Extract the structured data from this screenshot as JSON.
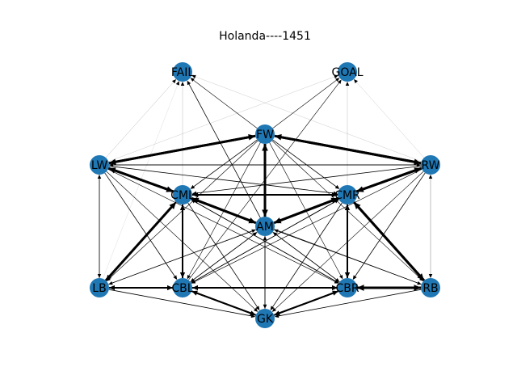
{
  "title": "Holanda----1451",
  "colors": {
    "node": "#1f77b4",
    "edge": "#000000",
    "background": "#ffffff"
  },
  "nodes": [
    {
      "id": "FAIL",
      "label": "FAIL"
    },
    {
      "id": "GOAL",
      "label": "GOAL"
    },
    {
      "id": "FW",
      "label": "FW"
    },
    {
      "id": "LW",
      "label": "LW"
    },
    {
      "id": "RW",
      "label": "RW"
    },
    {
      "id": "CML",
      "label": "CML"
    },
    {
      "id": "CMR",
      "label": "CMR"
    },
    {
      "id": "AM",
      "label": "AM"
    },
    {
      "id": "LB",
      "label": "LB"
    },
    {
      "id": "CBL",
      "label": "CBL"
    },
    {
      "id": "CBR",
      "label": "CBR"
    },
    {
      "id": "RB",
      "label": "RB"
    },
    {
      "id": "GK",
      "label": "GK"
    }
  ],
  "edges": [
    {
      "source": "LW",
      "target": "FW",
      "weight": 3
    },
    {
      "source": "FW",
      "target": "LW",
      "weight": 3
    },
    {
      "source": "RW",
      "target": "FW",
      "weight": 3
    },
    {
      "source": "FW",
      "target": "RW",
      "weight": 3
    },
    {
      "source": "AM",
      "target": "FW",
      "weight": 3
    },
    {
      "source": "FW",
      "target": "AM",
      "weight": 3
    },
    {
      "source": "LW",
      "target": "CML",
      "weight": 3
    },
    {
      "source": "CML",
      "target": "LW",
      "weight": 3
    },
    {
      "source": "RW",
      "target": "CMR",
      "weight": 3
    },
    {
      "source": "CMR",
      "target": "RW",
      "weight": 3
    },
    {
      "source": "CML",
      "target": "CMR",
      "weight": 2
    },
    {
      "source": "CMR",
      "target": "CML",
      "weight": 2
    },
    {
      "source": "CML",
      "target": "AM",
      "weight": 3
    },
    {
      "source": "AM",
      "target": "CML",
      "weight": 3
    },
    {
      "source": "CMR",
      "target": "AM",
      "weight": 3
    },
    {
      "source": "AM",
      "target": "CMR",
      "weight": 3
    },
    {
      "source": "LB",
      "target": "CML",
      "weight": 3
    },
    {
      "source": "CML",
      "target": "LB",
      "weight": 2
    },
    {
      "source": "RB",
      "target": "CMR",
      "weight": 3
    },
    {
      "source": "CMR",
      "target": "RB",
      "weight": 3
    },
    {
      "source": "CBL",
      "target": "CML",
      "weight": 2
    },
    {
      "source": "CML",
      "target": "CBL",
      "weight": 2
    },
    {
      "source": "CBR",
      "target": "CMR",
      "weight": 2
    },
    {
      "source": "CMR",
      "target": "CBR",
      "weight": 2
    },
    {
      "source": "LB",
      "target": "CBL",
      "weight": 2
    },
    {
      "source": "CBL",
      "target": "LB",
      "weight": 2
    },
    {
      "source": "CBL",
      "target": "CBR",
      "weight": 2
    },
    {
      "source": "CBR",
      "target": "CBL",
      "weight": 2
    },
    {
      "source": "CBR",
      "target": "RB",
      "weight": 3
    },
    {
      "source": "RB",
      "target": "CBR",
      "weight": 3
    },
    {
      "source": "CBL",
      "target": "GK",
      "weight": 2
    },
    {
      "source": "GK",
      "target": "CBL",
      "weight": 2
    },
    {
      "source": "CBR",
      "target": "GK",
      "weight": 2
    },
    {
      "source": "GK",
      "target": "CBR",
      "weight": 2
    },
    {
      "source": "LW",
      "target": "RW",
      "weight": 0.8
    },
    {
      "source": "RW",
      "target": "LW",
      "weight": 0.8
    },
    {
      "source": "LW",
      "target": "LB",
      "weight": 0.6
    },
    {
      "source": "LB",
      "target": "LW",
      "weight": 0.6
    },
    {
      "source": "RW",
      "target": "RB",
      "weight": 0.4
    },
    {
      "source": "RB",
      "target": "RW",
      "weight": 0.4
    },
    {
      "source": "LW",
      "target": "CMR",
      "weight": 0.8
    },
    {
      "source": "RW",
      "target": "CML",
      "weight": 0.8
    },
    {
      "source": "LW",
      "target": "AM",
      "weight": 0.8
    },
    {
      "source": "RW",
      "target": "AM",
      "weight": 0.8
    },
    {
      "source": "LW",
      "target": "CBL",
      "weight": 0.8
    },
    {
      "source": "LW",
      "target": "CBR",
      "weight": 0.6
    },
    {
      "source": "LW",
      "target": "GK",
      "weight": 0.6
    },
    {
      "source": "RW",
      "target": "CBR",
      "weight": 0.8
    },
    {
      "source": "RW",
      "target": "CBL",
      "weight": 0.6
    },
    {
      "source": "RW",
      "target": "GK",
      "weight": 0.6
    },
    {
      "source": "FW",
      "target": "CML",
      "weight": 0.8
    },
    {
      "source": "FW",
      "target": "CMR",
      "weight": 0.8
    },
    {
      "source": "FW",
      "target": "CBL",
      "weight": 0.6
    },
    {
      "source": "FW",
      "target": "CBR",
      "weight": 0.6
    },
    {
      "source": "FW",
      "target": "LB",
      "weight": 0.6
    },
    {
      "source": "FW",
      "target": "RB",
      "weight": 0.6
    },
    {
      "source": "FW",
      "target": "FAIL",
      "weight": 0.6
    },
    {
      "source": "FW",
      "target": "GOAL",
      "weight": 0.6
    },
    {
      "source": "AM",
      "target": "FAIL",
      "weight": 0.8
    },
    {
      "source": "CML",
      "target": "FAIL",
      "weight": 0.4
    },
    {
      "source": "LW",
      "target": "FAIL",
      "weight": 0.4
    },
    {
      "source": "RW",
      "target": "FAIL",
      "weight": 0.3
    },
    {
      "source": "CMR",
      "target": "GOAL",
      "weight": 0.4
    },
    {
      "source": "LW",
      "target": "GOAL",
      "weight": 0.3
    },
    {
      "source": "RW",
      "target": "GOAL",
      "weight": 0.3
    },
    {
      "source": "CBL",
      "target": "GOAL",
      "weight": 0.6
    },
    {
      "source": "LB",
      "target": "FAIL",
      "weight": 0.2
    },
    {
      "source": "CBL",
      "target": "CMR",
      "weight": 0.8
    },
    {
      "source": "CBR",
      "target": "CML",
      "weight": 0.8
    },
    {
      "source": "CBL",
      "target": "AM",
      "weight": 0.8
    },
    {
      "source": "CBR",
      "target": "AM",
      "weight": 0.8
    },
    {
      "source": "LB",
      "target": "AM",
      "weight": 0.6
    },
    {
      "source": "RB",
      "target": "AM",
      "weight": 0.6
    },
    {
      "source": "LB",
      "target": "CMR",
      "weight": 0.4
    },
    {
      "source": "RB",
      "target": "CML",
      "weight": 0.6
    },
    {
      "source": "CML",
      "target": "CBR",
      "weight": 0.8
    },
    {
      "source": "CMR",
      "target": "CBL",
      "weight": 0.8
    },
    {
      "source": "CML",
      "target": "GK",
      "weight": 0.8
    },
    {
      "source": "CMR",
      "target": "GK",
      "weight": 0.8
    },
    {
      "source": "AM",
      "target": "GK",
      "weight": 0.8
    },
    {
      "source": "GK",
      "target": "AM",
      "weight": 0.6
    },
    {
      "source": "LB",
      "target": "GK",
      "weight": 0.8
    },
    {
      "source": "RB",
      "target": "GK",
      "weight": 0.8
    },
    {
      "source": "LB",
      "target": "RB",
      "weight": 0.4
    },
    {
      "source": "RB",
      "target": "LB",
      "weight": 0.4
    },
    {
      "source": "AM",
      "target": "CBL",
      "weight": 0.6
    },
    {
      "source": "AM",
      "target": "CBR",
      "weight": 0.6
    },
    {
      "source": "AM",
      "target": "RB",
      "weight": 0.6
    },
    {
      "source": "AM",
      "target": "LB",
      "weight": 0.6
    }
  ]
}
